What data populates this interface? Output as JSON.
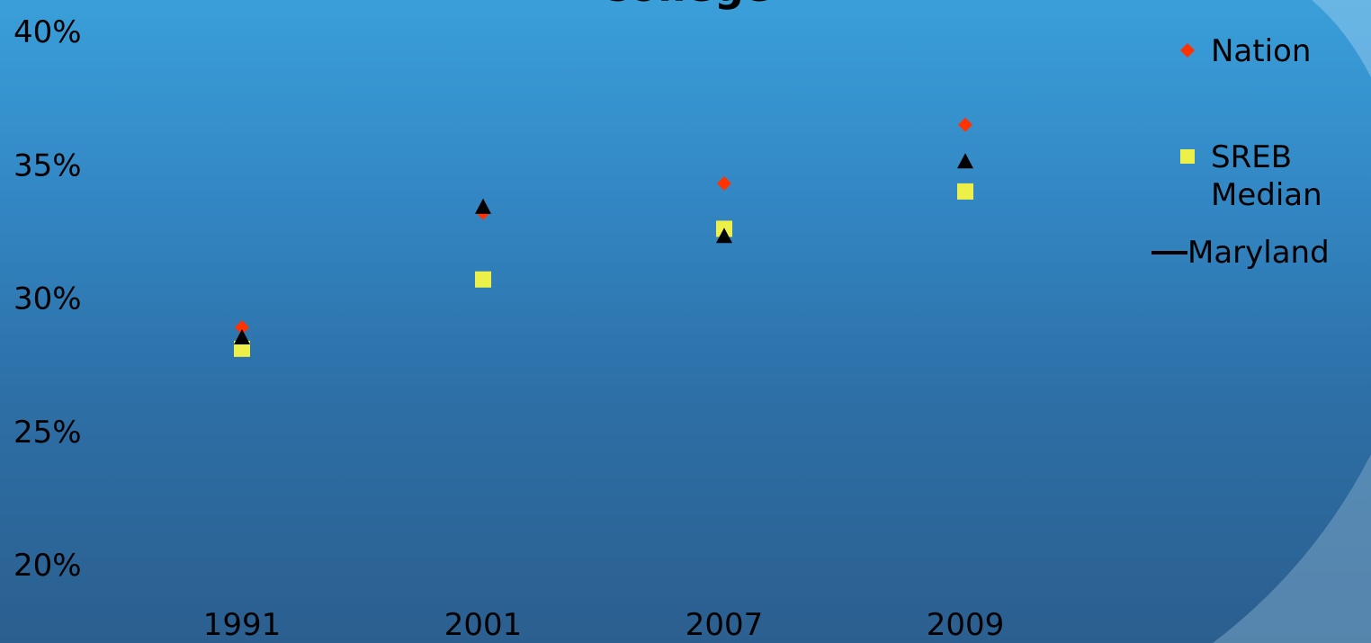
{
  "chart_data": {
    "type": "scatter",
    "title": "College",
    "xlabel": "",
    "ylabel": "",
    "categories": [
      "1991",
      "2001",
      "2007",
      "2009"
    ],
    "ylim": [
      0.2,
      0.4
    ],
    "y_tick_labels": [
      "40%",
      "35%",
      "30%",
      "25%",
      "20%"
    ],
    "y_ticks": [
      0.4,
      0.35,
      0.3,
      0.25,
      0.2
    ],
    "grid": false,
    "legend_position": "right",
    "series": [
      {
        "name": "Nation",
        "marker": "diamond",
        "color": "#ff3300",
        "values": [
          0.289,
          0.332,
          0.343,
          0.365
        ]
      },
      {
        "name": "SREB Median",
        "marker": "square",
        "color": "#eef04a",
        "values": [
          0.281,
          0.307,
          0.326,
          0.34
        ]
      },
      {
        "name": "Maryland",
        "marker": "triangle",
        "color": "#000000",
        "values": [
          0.285,
          0.334,
          0.323,
          0.351
        ]
      }
    ]
  }
}
